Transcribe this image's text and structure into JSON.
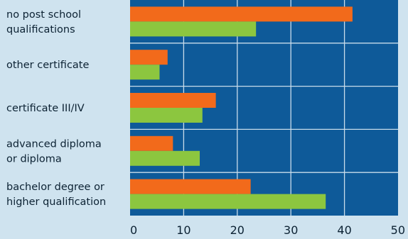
{
  "chart_data": {
    "type": "bar",
    "orientation": "horizontal",
    "categories": [
      [
        "no post school",
        "qualifications"
      ],
      [
        "other certificate"
      ],
      [
        "certificate III/IV"
      ],
      [
        "advanced diploma",
        "or diploma"
      ],
      [
        "bachelor degree or",
        "higher qualification"
      ]
    ],
    "series": [
      {
        "values": [
          41.5,
          7,
          16,
          8,
          22.5
        ],
        "color": "#f26a1b"
      },
      {
        "values": [
          23.5,
          5.5,
          13.5,
          13,
          36.5
        ],
        "color": "#8cc63f"
      }
    ],
    "xlim": [
      0,
      50
    ],
    "xticks": [
      "0",
      "10",
      "20",
      "30",
      "40",
      "50"
    ],
    "grid": true,
    "plot_background": "#0e5a99",
    "gridline_color": "#c8dcea"
  }
}
